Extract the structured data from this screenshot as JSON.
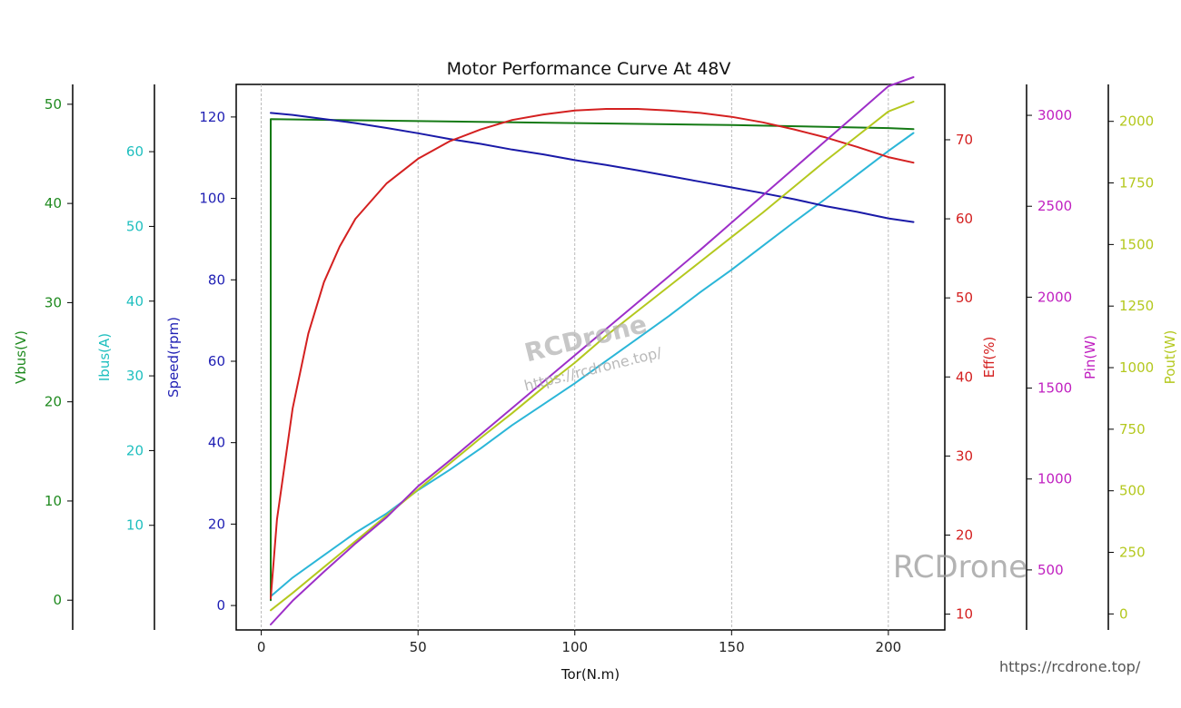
{
  "chart_data": {
    "type": "line",
    "title": "Motor Performance Curve At 48V",
    "xlabel": "Tor(N.m)",
    "xlim": [
      -8,
      218
    ],
    "xticks": [
      0,
      50,
      100,
      150,
      200
    ],
    "grid": "vertical dashed",
    "axes": [
      {
        "id": "vbus",
        "label": "Vbus(V)",
        "side": "left",
        "color": "#1f8a1f",
        "lim": [
          -3.0,
          52.0
        ],
        "ticks": [
          0,
          10,
          20,
          30,
          40,
          50
        ]
      },
      {
        "id": "ibus",
        "label": "Ibus(A)",
        "side": "left",
        "color": "#1fbfbf",
        "lim": [
          -4.0,
          69.0
        ],
        "ticks": [
          10,
          20,
          30,
          40,
          50,
          60
        ]
      },
      {
        "id": "speed",
        "label": "Speed(rpm)",
        "side": "left",
        "color": "#1f1fb4",
        "lim": [
          -6.0,
          128.0
        ],
        "ticks": [
          0,
          20,
          40,
          60,
          80,
          100,
          120
        ]
      },
      {
        "id": "eff",
        "label": "Eff(%)",
        "side": "right",
        "color": "#d42020",
        "lim": [
          8.0,
          77.0
        ],
        "ticks": [
          10,
          20,
          30,
          40,
          50,
          60,
          70
        ]
      },
      {
        "id": "pin",
        "label": "Pin(W)",
        "side": "right",
        "color": "#c020c0",
        "lim": [
          170,
          3170
        ],
        "ticks": [
          500,
          1000,
          1500,
          2000,
          2500,
          3000
        ]
      },
      {
        "id": "pout",
        "label": "Pout(W)",
        "side": "right",
        "color": "#b4c81e",
        "lim": [
          -65,
          2150
        ],
        "ticks": [
          0,
          250,
          500,
          750,
          1000,
          1250,
          1500,
          1750,
          2000
        ]
      }
    ],
    "series": [
      {
        "axis": "ibus",
        "color": "#2bb6d8",
        "x": [
          3,
          10,
          20,
          30,
          40,
          50,
          60,
          70,
          80,
          90,
          100,
          110,
          120,
          130,
          140,
          150,
          160,
          170,
          180,
          190,
          200,
          208
        ],
        "y": [
          0.5,
          3.0,
          6.0,
          9.0,
          11.6,
          14.7,
          17.4,
          20.3,
          23.4,
          26.2,
          29.0,
          32.0,
          35.0,
          38.0,
          41.2,
          44.2,
          47.4,
          50.6,
          53.7,
          56.9,
          60.1,
          62.5
        ]
      },
      {
        "axis": "vbus",
        "color": "#157a15",
        "x": [
          3,
          3,
          3,
          50,
          100,
          150,
          200,
          208
        ],
        "y": [
          0.0,
          45.0,
          48.5,
          48.3,
          48.1,
          47.9,
          47.6,
          47.5
        ]
      },
      {
        "axis": "speed",
        "color": "#1a1aa8",
        "x": [
          3,
          10,
          20,
          30,
          40,
          50,
          60,
          70,
          80,
          90,
          100,
          110,
          120,
          130,
          140,
          150,
          160,
          170,
          180,
          190,
          200,
          208
        ],
        "y": [
          121,
          120.5,
          119.5,
          118.5,
          117.3,
          116,
          114.6,
          113.4,
          112,
          110.8,
          109.4,
          108.2,
          106.9,
          105.5,
          104.1,
          102.7,
          101.3,
          99.8,
          98.1,
          96.7,
          95.1,
          94.2
        ]
      },
      {
        "axis": "eff",
        "color": "#d42020",
        "x": [
          3,
          5,
          10,
          15,
          20,
          25,
          30,
          40,
          50,
          60,
          70,
          80,
          90,
          100,
          110,
          120,
          130,
          140,
          150,
          160,
          170,
          180,
          190,
          200,
          208
        ],
        "y": [
          12,
          22,
          36,
          45.5,
          52,
          56.5,
          60,
          64.5,
          67.6,
          69.8,
          71.3,
          72.5,
          73.2,
          73.7,
          73.9,
          73.9,
          73.7,
          73.4,
          72.9,
          72.2,
          71.3,
          70.3,
          69.1,
          67.8,
          67.1
        ]
      },
      {
        "axis": "pout",
        "color": "#b4c81e",
        "x": [
          3,
          10,
          20,
          30,
          40,
          50,
          60,
          70,
          80,
          90,
          100,
          110,
          120,
          130,
          140,
          150,
          160,
          170,
          180,
          190,
          200,
          208
        ],
        "y": [
          15,
          85,
          190,
          295,
          400,
          505,
          610,
          715,
          815,
          920,
          1020,
          1130,
          1230,
          1330,
          1430,
          1530,
          1630,
          1735,
          1840,
          1940,
          2040,
          2080
        ]
      },
      {
        "axis": "pin",
        "color": "#9d2fc8",
        "x": [
          3,
          10,
          20,
          30,
          40,
          50,
          60,
          70,
          80,
          90,
          100,
          110,
          120,
          130,
          140,
          150,
          160,
          170,
          180,
          190,
          200,
          208
        ],
        "y": [
          200,
          330,
          490,
          645,
          790,
          960,
          1100,
          1245,
          1390,
          1535,
          1680,
          1825,
          1970,
          2115,
          2260,
          2410,
          2560,
          2710,
          2860,
          3010,
          3160,
          3210
        ]
      }
    ]
  },
  "watermarks": {
    "brand": "RCDrone",
    "center_url": "https://rcdrone.top/",
    "footer_url": "https://rcdrone.top/"
  }
}
